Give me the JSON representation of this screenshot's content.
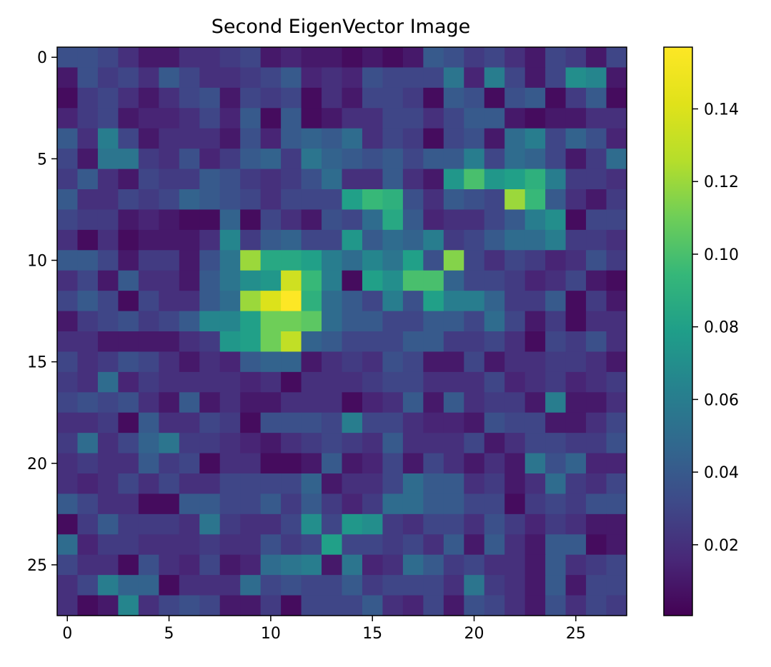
{
  "chart_data": {
    "type": "heatmap",
    "title": "Second EigenVector Image",
    "xlabel": "",
    "ylabel": "",
    "shape": [
      28,
      28
    ],
    "x_ticks": [
      0,
      5,
      10,
      15,
      20,
      25
    ],
    "y_ticks": [
      0,
      5,
      10,
      15,
      20,
      25
    ],
    "x_tick_labels": [
      "0",
      "5",
      "10",
      "15",
      "20",
      "25"
    ],
    "y_tick_labels": [
      "0",
      "5",
      "10",
      "15",
      "20",
      "25"
    ],
    "colormap": "viridis",
    "colorbar": {
      "range": [
        0.0005,
        0.157
      ],
      "ticks": [
        0.02,
        0.04,
        0.06,
        0.08,
        0.1,
        0.12,
        0.14
      ],
      "tick_labels": [
        "0.02",
        "0.04",
        "0.06",
        "0.08",
        "0.10",
        "0.12",
        "0.14"
      ]
    },
    "grid": false,
    "values": [
      [
        0.035,
        0.035,
        0.03,
        0.02,
        0.01,
        0.01,
        0.02,
        0.02,
        0.025,
        0.03,
        0.01,
        0.015,
        0.01,
        0.01,
        0.005,
        0.01,
        0.005,
        0.01,
        0.04,
        0.035,
        0.025,
        0.03,
        0.02,
        0.01,
        0.03,
        0.025,
        0.01,
        0.03
      ],
      [
        0.01,
        0.035,
        0.025,
        0.03,
        0.02,
        0.04,
        0.03,
        0.02,
        0.02,
        0.025,
        0.03,
        0.04,
        0.015,
        0.02,
        0.015,
        0.035,
        0.03,
        0.03,
        0.03,
        0.055,
        0.015,
        0.06,
        0.03,
        0.01,
        0.03,
        0.07,
        0.065,
        0.01
      ],
      [
        0.005,
        0.025,
        0.03,
        0.02,
        0.01,
        0.02,
        0.03,
        0.035,
        0.01,
        0.03,
        0.025,
        0.03,
        0.005,
        0.02,
        0.01,
        0.03,
        0.03,
        0.025,
        0.005,
        0.04,
        0.035,
        0.005,
        0.035,
        0.04,
        0.005,
        0.025,
        0.04,
        0.005
      ],
      [
        0.015,
        0.025,
        0.03,
        0.01,
        0.015,
        0.015,
        0.02,
        0.03,
        0.015,
        0.04,
        0.005,
        0.04,
        0.005,
        0.01,
        0.02,
        0.02,
        0.03,
        0.03,
        0.02,
        0.03,
        0.04,
        0.04,
        0.01,
        0.005,
        0.01,
        0.01,
        0.02,
        0.02
      ],
      [
        0.04,
        0.02,
        0.06,
        0.03,
        0.01,
        0.02,
        0.02,
        0.02,
        0.01,
        0.035,
        0.015,
        0.04,
        0.045,
        0.04,
        0.05,
        0.02,
        0.03,
        0.025,
        0.005,
        0.03,
        0.035,
        0.01,
        0.05,
        0.06,
        0.03,
        0.045,
        0.035,
        0.015
      ],
      [
        0.03,
        0.01,
        0.055,
        0.055,
        0.025,
        0.02,
        0.035,
        0.015,
        0.025,
        0.04,
        0.045,
        0.025,
        0.055,
        0.045,
        0.04,
        0.035,
        0.04,
        0.03,
        0.04,
        0.04,
        0.06,
        0.03,
        0.05,
        0.045,
        0.03,
        0.01,
        0.025,
        0.05
      ],
      [
        0.025,
        0.04,
        0.02,
        0.01,
        0.03,
        0.025,
        0.025,
        0.04,
        0.035,
        0.025,
        0.02,
        0.025,
        0.035,
        0.05,
        0.02,
        0.02,
        0.04,
        0.02,
        0.01,
        0.075,
        0.1,
        0.075,
        0.08,
        0.09,
        0.06,
        0.025,
        0.025,
        0.02
      ],
      [
        0.04,
        0.02,
        0.02,
        0.03,
        0.025,
        0.03,
        0.045,
        0.04,
        0.035,
        0.03,
        0.02,
        0.03,
        0.03,
        0.03,
        0.08,
        0.095,
        0.09,
        0.035,
        0.02,
        0.04,
        0.035,
        0.03,
        0.12,
        0.095,
        0.04,
        0.02,
        0.01,
        0.025
      ],
      [
        0.03,
        0.025,
        0.025,
        0.01,
        0.015,
        0.01,
        0.005,
        0.005,
        0.045,
        0.005,
        0.03,
        0.02,
        0.01,
        0.035,
        0.03,
        0.05,
        0.085,
        0.04,
        0.015,
        0.02,
        0.02,
        0.03,
        0.04,
        0.06,
        0.07,
        0.005,
        0.03,
        0.03
      ],
      [
        0.02,
        0.005,
        0.02,
        0.005,
        0.01,
        0.01,
        0.01,
        0.02,
        0.065,
        0.025,
        0.04,
        0.045,
        0.03,
        0.03,
        0.075,
        0.04,
        0.05,
        0.045,
        0.06,
        0.025,
        0.03,
        0.04,
        0.05,
        0.05,
        0.06,
        0.025,
        0.025,
        0.02
      ],
      [
        0.04,
        0.04,
        0.03,
        0.01,
        0.025,
        0.025,
        0.01,
        0.035,
        0.055,
        0.12,
        0.085,
        0.085,
        0.08,
        0.06,
        0.05,
        0.065,
        0.055,
        0.08,
        0.035,
        0.115,
        0.03,
        0.02,
        0.03,
        0.025,
        0.015,
        0.02,
        0.035,
        0.025
      ],
      [
        0.02,
        0.03,
        0.01,
        0.04,
        0.02,
        0.02,
        0.01,
        0.04,
        0.055,
        0.07,
        0.075,
        0.135,
        0.095,
        0.06,
        0.005,
        0.08,
        0.07,
        0.1,
        0.1,
        0.045,
        0.03,
        0.03,
        0.025,
        0.015,
        0.02,
        0.03,
        0.01,
        0.005
      ],
      [
        0.03,
        0.04,
        0.03,
        0.005,
        0.03,
        0.02,
        0.02,
        0.04,
        0.05,
        0.12,
        0.14,
        0.157,
        0.09,
        0.05,
        0.04,
        0.03,
        0.06,
        0.035,
        0.08,
        0.06,
        0.06,
        0.045,
        0.025,
        0.025,
        0.04,
        0.005,
        0.025,
        0.01
      ],
      [
        0.01,
        0.025,
        0.03,
        0.035,
        0.025,
        0.03,
        0.04,
        0.065,
        0.065,
        0.08,
        0.11,
        0.11,
        0.105,
        0.05,
        0.04,
        0.04,
        0.03,
        0.03,
        0.04,
        0.04,
        0.03,
        0.05,
        0.03,
        0.01,
        0.025,
        0.005,
        0.02,
        0.02
      ],
      [
        0.02,
        0.02,
        0.01,
        0.01,
        0.01,
        0.01,
        0.02,
        0.025,
        0.075,
        0.08,
        0.11,
        0.13,
        0.045,
        0.04,
        0.03,
        0.03,
        0.03,
        0.04,
        0.04,
        0.025,
        0.025,
        0.03,
        0.02,
        0.005,
        0.03,
        0.025,
        0.035,
        0.02
      ],
      [
        0.03,
        0.02,
        0.025,
        0.035,
        0.03,
        0.02,
        0.01,
        0.02,
        0.015,
        0.04,
        0.045,
        0.045,
        0.01,
        0.02,
        0.025,
        0.02,
        0.035,
        0.03,
        0.01,
        0.01,
        0.03,
        0.01,
        0.02,
        0.02,
        0.025,
        0.025,
        0.02,
        0.01
      ],
      [
        0.025,
        0.02,
        0.05,
        0.015,
        0.025,
        0.02,
        0.02,
        0.02,
        0.02,
        0.015,
        0.02,
        0.005,
        0.02,
        0.02,
        0.02,
        0.025,
        0.03,
        0.03,
        0.02,
        0.02,
        0.02,
        0.03,
        0.015,
        0.02,
        0.025,
        0.015,
        0.02,
        0.025
      ],
      [
        0.03,
        0.035,
        0.03,
        0.035,
        0.02,
        0.01,
        0.04,
        0.01,
        0.02,
        0.01,
        0.01,
        0.02,
        0.02,
        0.02,
        0.005,
        0.015,
        0.02,
        0.04,
        0.01,
        0.04,
        0.02,
        0.025,
        0.025,
        0.01,
        0.06,
        0.01,
        0.01,
        0.02
      ],
      [
        0.02,
        0.02,
        0.025,
        0.005,
        0.04,
        0.02,
        0.02,
        0.03,
        0.025,
        0.005,
        0.035,
        0.035,
        0.035,
        0.03,
        0.06,
        0.03,
        0.03,
        0.02,
        0.015,
        0.015,
        0.01,
        0.035,
        0.03,
        0.03,
        0.01,
        0.01,
        0.02,
        0.03
      ],
      [
        0.025,
        0.05,
        0.02,
        0.03,
        0.045,
        0.055,
        0.025,
        0.025,
        0.02,
        0.015,
        0.01,
        0.02,
        0.025,
        0.03,
        0.025,
        0.02,
        0.04,
        0.02,
        0.02,
        0.02,
        0.03,
        0.01,
        0.02,
        0.03,
        0.03,
        0.025,
        0.025,
        0.035
      ],
      [
        0.02,
        0.025,
        0.02,
        0.02,
        0.04,
        0.025,
        0.03,
        0.005,
        0.02,
        0.02,
        0.005,
        0.005,
        0.01,
        0.04,
        0.01,
        0.015,
        0.03,
        0.01,
        0.03,
        0.02,
        0.01,
        0.02,
        0.01,
        0.055,
        0.035,
        0.045,
        0.015,
        0.015
      ],
      [
        0.02,
        0.015,
        0.02,
        0.03,
        0.02,
        0.03,
        0.02,
        0.02,
        0.03,
        0.03,
        0.03,
        0.03,
        0.045,
        0.01,
        0.02,
        0.02,
        0.03,
        0.05,
        0.04,
        0.04,
        0.02,
        0.025,
        0.01,
        0.02,
        0.05,
        0.025,
        0.02,
        0.03
      ],
      [
        0.04,
        0.03,
        0.02,
        0.02,
        0.005,
        0.005,
        0.04,
        0.04,
        0.03,
        0.03,
        0.04,
        0.025,
        0.04,
        0.025,
        0.015,
        0.025,
        0.05,
        0.05,
        0.04,
        0.04,
        0.03,
        0.03,
        0.005,
        0.025,
        0.03,
        0.025,
        0.035,
        0.035
      ],
      [
        0.005,
        0.025,
        0.04,
        0.025,
        0.025,
        0.025,
        0.02,
        0.055,
        0.025,
        0.02,
        0.02,
        0.03,
        0.07,
        0.03,
        0.075,
        0.07,
        0.025,
        0.02,
        0.03,
        0.03,
        0.02,
        0.035,
        0.025,
        0.015,
        0.025,
        0.02,
        0.01,
        0.01
      ],
      [
        0.05,
        0.015,
        0.025,
        0.025,
        0.02,
        0.02,
        0.02,
        0.025,
        0.02,
        0.02,
        0.035,
        0.025,
        0.03,
        0.08,
        0.03,
        0.03,
        0.025,
        0.03,
        0.02,
        0.04,
        0.01,
        0.04,
        0.02,
        0.01,
        0.04,
        0.04,
        0.005,
        0.01
      ],
      [
        0.03,
        0.02,
        0.02,
        0.005,
        0.035,
        0.02,
        0.015,
        0.03,
        0.01,
        0.015,
        0.05,
        0.055,
        0.06,
        0.01,
        0.055,
        0.015,
        0.02,
        0.05,
        0.04,
        0.025,
        0.03,
        0.02,
        0.02,
        0.01,
        0.04,
        0.02,
        0.025,
        0.03
      ],
      [
        0.02,
        0.03,
        0.06,
        0.045,
        0.045,
        0.005,
        0.02,
        0.02,
        0.02,
        0.05,
        0.03,
        0.035,
        0.03,
        0.03,
        0.04,
        0.025,
        0.03,
        0.03,
        0.03,
        0.02,
        0.055,
        0.025,
        0.02,
        0.01,
        0.04,
        0.01,
        0.03,
        0.03
      ],
      [
        0.02,
        0.005,
        0.01,
        0.065,
        0.02,
        0.03,
        0.035,
        0.03,
        0.01,
        0.01,
        0.025,
        0.005,
        0.03,
        0.03,
        0.03,
        0.04,
        0.02,
        0.015,
        0.03,
        0.01,
        0.035,
        0.03,
        0.02,
        0.01,
        0.035,
        0.02,
        0.03,
        0.025
      ]
    ]
  }
}
